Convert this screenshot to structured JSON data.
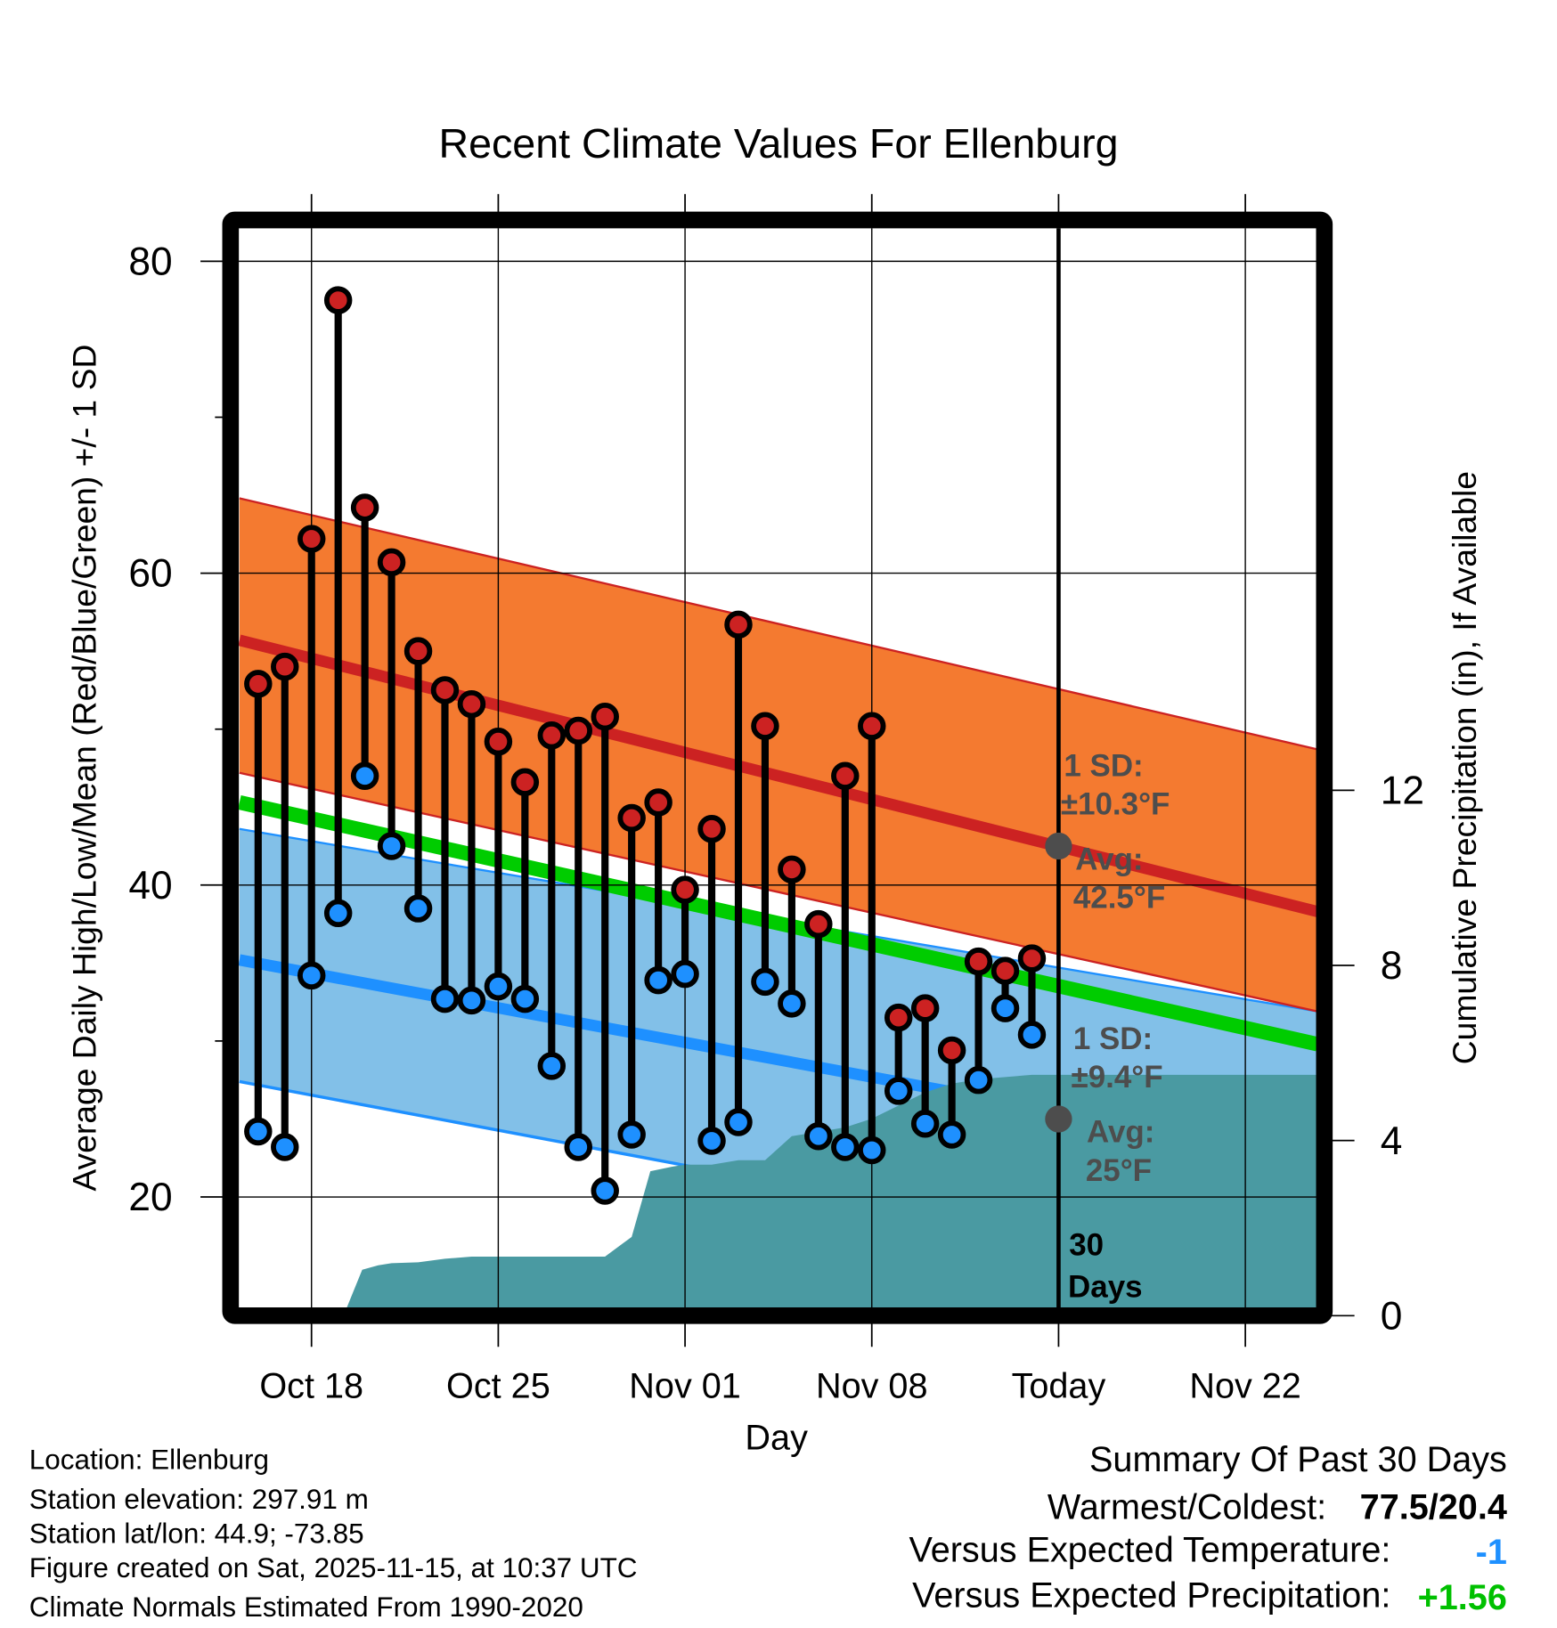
{
  "chart_data": {
    "type": "line",
    "title": "Recent Climate Values For Ellenburg",
    "xlabel": "Day",
    "ylabel": "Average Daily High/Low/Mean (Red/Blue/Green) +/- 1 SD",
    "y2label": "Cumulative Precipitation (in), If Available",
    "ylim": [
      12.9,
      82
    ],
    "y2lim": [
      0,
      24.5
    ],
    "yticks": [
      80,
      60,
      40,
      20
    ],
    "y2ticks": [
      0,
      4,
      8,
      12
    ],
    "x_day_range": [
      -2.7,
      37.7
    ],
    "x_note": "x values are days relative to Oct 18",
    "xticks": [
      {
        "day": 0,
        "label": "Oct 18"
      },
      {
        "day": 7,
        "label": "Oct 25"
      },
      {
        "day": 14,
        "label": "Nov 01"
      },
      {
        "day": 21,
        "label": "Nov 08"
      },
      {
        "day": 28,
        "label": "Today"
      },
      {
        "day": 35,
        "label": "Nov 22"
      }
    ],
    "grid": true,
    "daily": {
      "start_day": -2,
      "dates": [
        "Oct 16",
        "Oct 17",
        "Oct 18",
        "Oct 19",
        "Oct 20",
        "Oct 21",
        "Oct 22",
        "Oct 23",
        "Oct 24",
        "Oct 25",
        "Oct 26",
        "Oct 27",
        "Oct 28",
        "Oct 29",
        "Oct 30",
        "Oct 31",
        "Nov 01",
        "Nov 02",
        "Nov 03",
        "Nov 04",
        "Nov 05",
        "Nov 06",
        "Nov 07",
        "Nov 08",
        "Nov 09",
        "Nov 10",
        "Nov 11",
        "Nov 12",
        "Nov 13",
        "Nov 14"
      ],
      "high": [
        52.9,
        54.0,
        62.2,
        77.5,
        64.2,
        60.7,
        55.0,
        52.5,
        51.6,
        49.2,
        46.6,
        49.6,
        49.9,
        50.8,
        44.3,
        45.3,
        39.7,
        43.6,
        56.7,
        50.2,
        41.0,
        37.5,
        47.0,
        50.2,
        31.5,
        32.1,
        29.4,
        35.1,
        34.5,
        35.3
      ],
      "low": [
        24.2,
        23.2,
        34.2,
        38.2,
        47.0,
        42.5,
        38.5,
        32.7,
        32.6,
        33.5,
        32.7,
        28.4,
        23.2,
        20.4,
        24.0,
        33.9,
        34.3,
        23.6,
        24.8,
        33.8,
        32.4,
        23.9,
        23.2,
        23.0,
        26.8,
        24.7,
        24.0,
        27.5,
        32.1,
        30.4
      ]
    },
    "normals": {
      "high_band_upper": [
        64.8,
        48.7
      ],
      "avg_high": [
        55.7,
        38.3
      ],
      "high_band_lower": [
        47.2,
        31.9
      ],
      "mean": [
        45.3,
        29.8
      ],
      "low_band_upper": [
        43.6,
        31.9
      ],
      "avg_low": [
        35.2,
        22.4
      ],
      "low_band_lower": [
        27.4,
        14.4
      ]
    },
    "precip_cumulative": [
      [
        1.2,
        0
      ],
      [
        1.9,
        1.05
      ],
      [
        2.5,
        1.15
      ],
      [
        3,
        1.2
      ],
      [
        4,
        1.22
      ],
      [
        5,
        1.3
      ],
      [
        6,
        1.35
      ],
      [
        7,
        1.35
      ],
      [
        8,
        1.35
      ],
      [
        9,
        1.35
      ],
      [
        10,
        1.35
      ],
      [
        11,
        1.35
      ],
      [
        12,
        1.8
      ],
      [
        12.7,
        3.3
      ],
      [
        13.5,
        3.4
      ],
      [
        14,
        3.45
      ],
      [
        15,
        3.45
      ],
      [
        16,
        3.55
      ],
      [
        17,
        3.55
      ],
      [
        18,
        4.1
      ],
      [
        19,
        4.2
      ],
      [
        20,
        4.3
      ],
      [
        21,
        4.5
      ],
      [
        22,
        4.8
      ],
      [
        23,
        5.1
      ],
      [
        24,
        5.3
      ],
      [
        25,
        5.4
      ],
      [
        26,
        5.45
      ],
      [
        27,
        5.5
      ],
      [
        37.7,
        5.5
      ]
    ],
    "annotations": {
      "high_sd_title": "1 SD:",
      "high_sd_value": "±10.3°F",
      "high_avg_title": "Avg:",
      "high_avg_value": "42.5°F",
      "low_sd_title": "1 SD:",
      "low_sd_value": "±9.4°F",
      "low_avg_title": "Avg:",
      "low_avg_value": "25°F",
      "period_number": "30",
      "period_unit": "Days",
      "today_avg_high": 42.5,
      "today_avg_low": 25
    },
    "colors": {
      "high_band": "#f47a30",
      "high_line": "#cc2222",
      "low_band": "#82c0e8",
      "low_line": "#1e90ff",
      "mean_line": "#00cc00",
      "precip": "#4a9aa2",
      "annotation": "#4d4d4d"
    }
  },
  "footer": {
    "location": "Location: Ellenburg",
    "elevation": "Station elevation: 297.91 m",
    "latlon": "Station lat/lon: 44.9; -73.85",
    "created": "Figure created on Sat, 2025-11-15, at 10:37 UTC",
    "normals": "Climate Normals Estimated From 1990-2020"
  },
  "summary": {
    "title": "Summary Of Past 30 Days",
    "warmest_label": "Warmest/Coldest:",
    "warmest_value": "77.5/20.4",
    "temp_label": "Versus Expected Temperature:",
    "temp_value": "-1",
    "temp_color": "#1e90ff",
    "precip_label": "Versus Expected Precipitation:",
    "precip_value": "+1.56",
    "precip_color": "#00c000"
  }
}
